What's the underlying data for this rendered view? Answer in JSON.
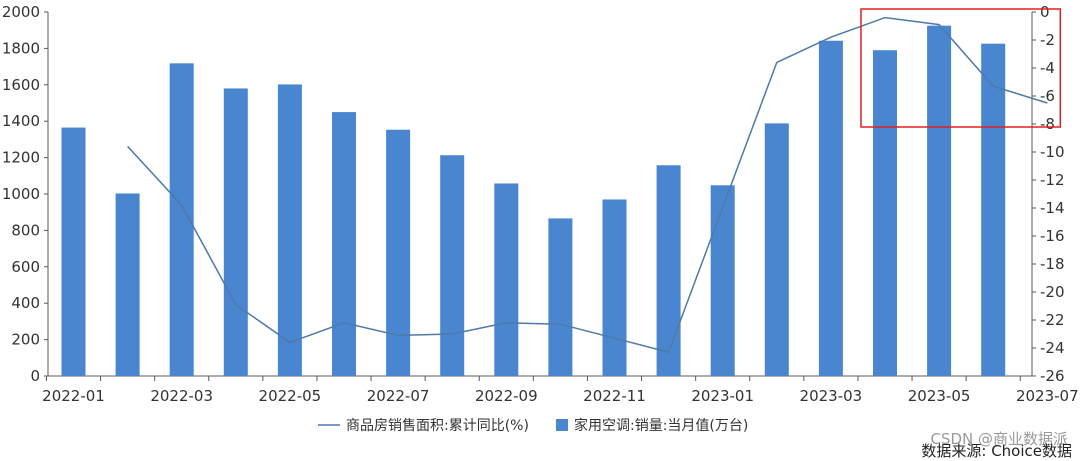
{
  "chart_data": {
    "type": "bar+line",
    "categories": [
      "2022-01",
      "2022-02",
      "2022-03",
      "2022-04",
      "2022-05",
      "2022-06",
      "2022-07",
      "2022-08",
      "2022-09",
      "2022-10",
      "2022-11",
      "2022-12",
      "2023-01",
      "2023-02",
      "2023-03",
      "2023-04",
      "2023-05",
      "2023-06",
      "2023-07"
    ],
    "x_tick_labels": [
      "2022-01",
      "2022-03",
      "2022-05",
      "2022-07",
      "2022-09",
      "2022-11",
      "2023-01",
      "2023-03",
      "2023-05",
      "2023-07"
    ],
    "bar_series": {
      "name": "家用空调:销量:当月值(万台)",
      "axis": "left",
      "color": "#4a86d0",
      "values": [
        1365,
        1003,
        1718,
        1580,
        1602,
        1450,
        1353,
        1213,
        1058,
        866,
        970,
        1158,
        1048,
        1388,
        1842,
        1790,
        1925,
        1826,
        null
      ]
    },
    "line_series": {
      "name": "商品房销售面积:累计同比(%)",
      "axis": "right",
      "color": "#4e79a7",
      "values": [
        null,
        -9.6,
        -13.8,
        -20.9,
        -23.6,
        -22.2,
        -23.1,
        -23.0,
        -22.2,
        -22.3,
        -23.3,
        -24.3,
        null,
        -3.6,
        -1.8,
        -0.4,
        -0.9,
        -5.3,
        -6.5
      ]
    },
    "y_left": {
      "min": 0,
      "max": 2000,
      "step": 200
    },
    "y_right": {
      "min": -26,
      "max": 0,
      "step": 2
    },
    "grid": false,
    "legend_position": "bottom",
    "highlight_box": {
      "color": "#e02020",
      "from_category": "2023-04",
      "to_category": "2023-07"
    }
  },
  "footer": {
    "watermark": "CSDN @商业数据派",
    "source": "数据来源: Choice数据"
  }
}
